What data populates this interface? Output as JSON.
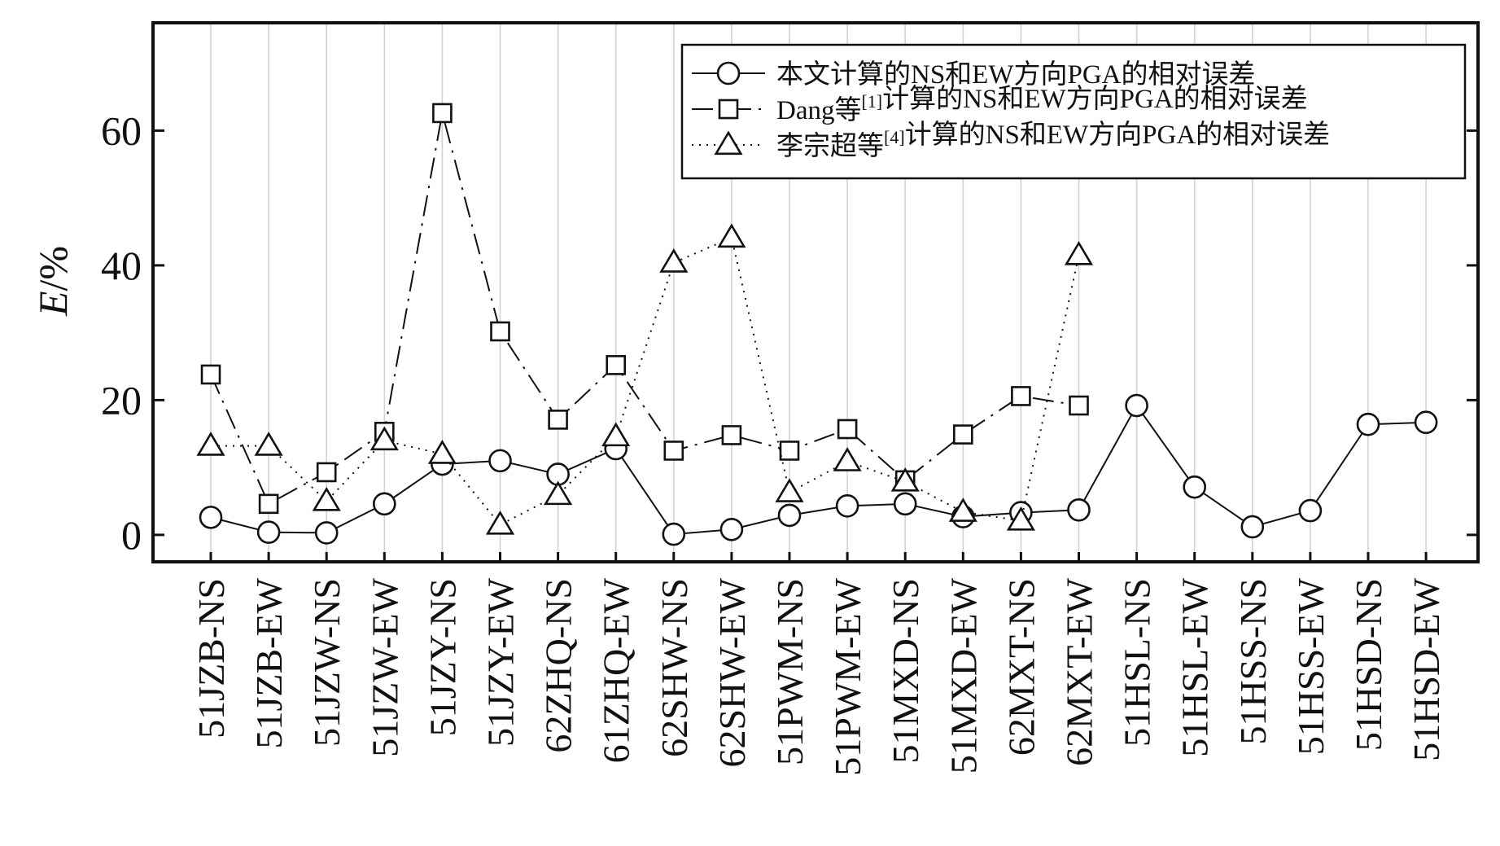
{
  "chart_data": {
    "type": "line",
    "title": "",
    "xlabel": "",
    "ylabel": "E/%",
    "ylabel_italic_part": "E",
    "ylabel_rest": "/%",
    "ylim": [
      -4,
      76
    ],
    "yticks": [
      0,
      20,
      40,
      60
    ],
    "grid": "vertical",
    "legend_position": "top-right",
    "categories": [
      "51JZB-NS",
      "51JZB-EW",
      "51JZW-NS",
      "51JZW-EW",
      "51JZY-NS",
      "51JZY-EW",
      "62ZHQ-NS",
      "61ZHQ-EW",
      "62SHW-NS",
      "62SHW-EW",
      "51PWM-NS",
      "51PWM-EW",
      "51MXD-NS",
      "51MXD-EW",
      "62MXT-NS",
      "62MXT-EW",
      "51HSL-NS",
      "51HSL-EW",
      "51HSS-NS",
      "51HSS-EW",
      "51HSD-NS",
      "51HSD-EW"
    ],
    "series": [
      {
        "name": "本文计算的NS和EW方向PGA的相对误差",
        "legend_parts": [
          "本文计算的NS和EW方向PGA的相对误差"
        ],
        "marker": "circle",
        "line": "solid",
        "values": [
          2.6,
          0.4,
          0.3,
          4.6,
          10.5,
          11.0,
          9.0,
          12.8,
          0.1,
          0.8,
          2.9,
          4.3,
          4.6,
          2.7,
          3.3,
          3.7,
          19.2,
          7.1,
          1.2,
          3.6,
          16.4,
          16.7
        ]
      },
      {
        "name": "Dang等[1]计算的NS和EW方向PGA的相对误差",
        "legend_parts": [
          "Dang等",
          "[1]",
          "计算的NS和EW方向PGA的相对误差"
        ],
        "marker": "square",
        "line": "dashdot",
        "values": [
          23.8,
          4.6,
          9.3,
          15.3,
          62.6,
          30.2,
          17.1,
          25.2,
          12.5,
          14.8,
          12.5,
          15.7,
          8.1,
          14.9,
          20.6,
          19.2,
          null,
          null,
          null,
          null,
          null,
          null
        ]
      },
      {
        "name": "李宗超等[4]计算的NS和EW方向PGA的相对误差",
        "legend_parts": [
          "李宗超等",
          "[4]",
          "计算的NS和EW方向PGA的相对误差"
        ],
        "marker": "triangle",
        "line": "dotted",
        "values": [
          13.2,
          13.2,
          5.0,
          14.0,
          12.0,
          1.5,
          5.9,
          14.6,
          40.4,
          44.1,
          6.3,
          10.9,
          7.9,
          3.4,
          2.1,
          41.5,
          null,
          null,
          null,
          null,
          null,
          null
        ]
      }
    ]
  }
}
